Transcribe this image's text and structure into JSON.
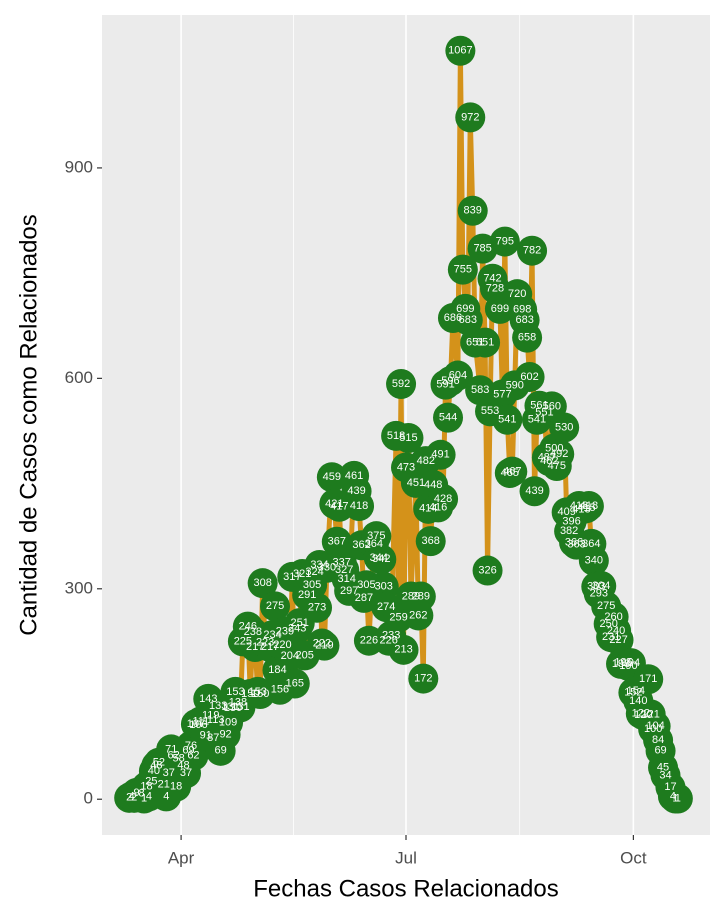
{
  "chart_data": {
    "type": "line",
    "xlabel": "Fechas Casos Relacionados",
    "ylabel": "Cantidad de Casos como Relacionados",
    "line_color": "#d4921a",
    "marker_color": "#1e7b1e",
    "xlim": [
      60,
      306
    ],
    "ylim": [
      -51,
      1118
    ],
    "xticks": [
      {
        "value": 92,
        "label": "Apr"
      },
      {
        "value": 183,
        "label": "Jul"
      },
      {
        "value": 275,
        "label": "Oct"
      }
    ],
    "xminorticks": [
      137.5,
      229
    ],
    "yticks": [
      0,
      300,
      600,
      900
    ],
    "grid": "x",
    "x": [
      71,
      72,
      73,
      74,
      76,
      77,
      78,
      79,
      80,
      81,
      82,
      83,
      85,
      86,
      87,
      88,
      89,
      90,
      91,
      93,
      94,
      95,
      96,
      97,
      98,
      99,
      100,
      102,
      103,
      104,
      105,
      106,
      107,
      108,
      110,
      111,
      112,
      113,
      114,
      115,
      116,
      117,
      119,
      120,
      121,
      122,
      123,
      124,
      125,
      126,
      128,
      129,
      130,
      131,
      132,
      133,
      134,
      136,
      137,
      138,
      139,
      140,
      141,
      142,
      143,
      145,
      146,
      147,
      148,
      149,
      150,
      151,
      153,
      154,
      155,
      156,
      157,
      158,
      159,
      160,
      162,
      163,
      164,
      165,
      166,
      167,
      168,
      170,
      171,
      172,
      173,
      174,
      175,
      176,
      177,
      179,
      180,
      181,
      182,
      183,
      184,
      185,
      187,
      188,
      189,
      190,
      191,
      192,
      193,
      194,
      196,
      197,
      198,
      199,
      200,
      201,
      202,
      204,
      205,
      206,
      207,
      208,
      209,
      210,
      211,
      213,
      214,
      215,
      216,
      217,
      218,
      219,
      221,
      222,
      223,
      224,
      225,
      226,
      227,
      228,
      230,
      231,
      232,
      233,
      234,
      235,
      236,
      237,
      239,
      240,
      241,
      242,
      243,
      244,
      245,
      247,
      248,
      249,
      250,
      251,
      252,
      253,
      254,
      256,
      257,
      258,
      259,
      260,
      261,
      262,
      264,
      265,
      266,
      267,
      268,
      269,
      270,
      271,
      273,
      274,
      275,
      276,
      277,
      278,
      279,
      281,
      282,
      283,
      284,
      285,
      286,
      287,
      288,
      290,
      291,
      292,
      293
    ],
    "values": [
      2,
      4,
      2,
      9,
      8,
      1,
      18,
      4,
      25,
      40,
      48,
      52,
      21,
      4,
      37,
      71,
      62,
      18,
      58,
      48,
      37,
      69,
      76,
      62,
      107,
      106,
      111,
      91,
      143,
      119,
      87,
      113,
      133,
      69,
      92,
      109,
      131,
      130,
      153,
      138,
      131,
      225,
      246,
      150,
      238,
      217,
      153,
      150,
      308,
      223,
      217,
      234,
      275,
      184,
      156,
      220,
      239,
      204,
      317,
      165,
      243,
      251,
      321,
      205,
      291,
      305,
      324,
      273,
      334,
      222,
      219,
      330,
      459,
      421,
      367,
      417,
      337,
      327,
      314,
      297,
      461,
      439,
      418,
      362,
      287,
      305,
      226,
      364,
      375,
      344,
      342,
      303,
      274,
      226,
      233,
      518,
      259,
      592,
      213,
      473,
      515,
      289,
      451,
      262,
      289,
      172,
      482,
      414,
      368,
      448,
      416,
      491,
      428,
      591,
      544,
      596,
      686,
      604,
      1067,
      755,
      699,
      683,
      972,
      839,
      651,
      583,
      785,
      651,
      326,
      553,
      742,
      728,
      699,
      577,
      795,
      541,
      465,
      467,
      590,
      720,
      698,
      683,
      658,
      602,
      782,
      439,
      541,
      561,
      551,
      487,
      482,
      560,
      500,
      475,
      492,
      530,
      409,
      382,
      396,
      366,
      363,
      418,
      413,
      415,
      418,
      364,
      340,
      303,
      293,
      304,
      275,
      250,
      231,
      260,
      240,
      227,
      193,
      195,
      190,
      194,
      152,
      154,
      140,
      122,
      120,
      171,
      121,
      100,
      104,
      84,
      69,
      45,
      34,
      17,
      4,
      1,
      1
    ]
  }
}
